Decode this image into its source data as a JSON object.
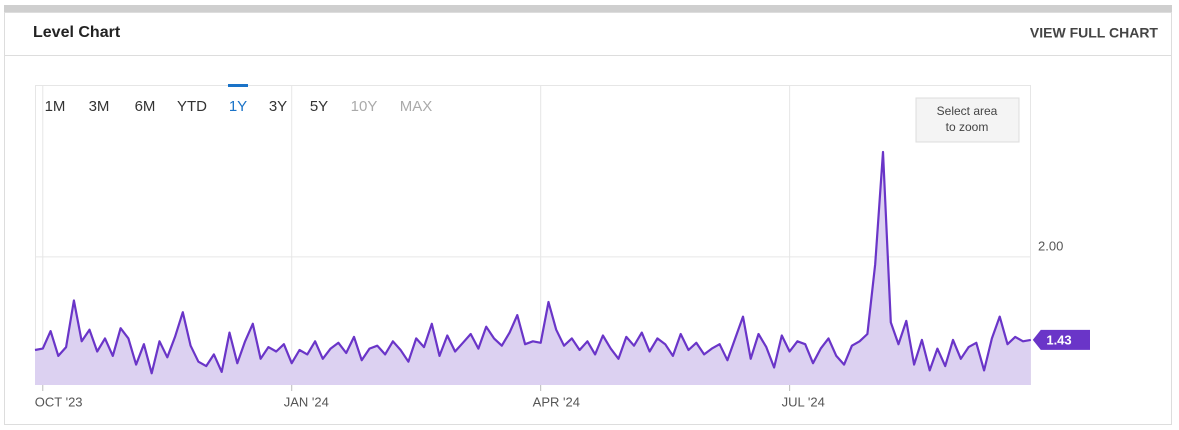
{
  "header": {
    "title": "Level Chart",
    "action": "VIEW FULL CHART"
  },
  "range_selector": {
    "options": [
      {
        "label": "1M",
        "selected": false,
        "enabled": true
      },
      {
        "label": "3M",
        "selected": false,
        "enabled": true
      },
      {
        "label": "6M",
        "selected": false,
        "enabled": true
      },
      {
        "label": "YTD",
        "selected": false,
        "enabled": true
      },
      {
        "label": "1Y",
        "selected": true,
        "enabled": true
      },
      {
        "label": "3Y",
        "selected": false,
        "enabled": true
      },
      {
        "label": "5Y",
        "selected": false,
        "enabled": true
      },
      {
        "label": "10Y",
        "selected": false,
        "enabled": false
      },
      {
        "label": "MAX",
        "selected": false,
        "enabled": false
      }
    ]
  },
  "zoom_hint": "Select area to zoom",
  "chart_data": {
    "type": "area",
    "grid": true,
    "categories": [
      null,
      "OCT '23",
      null,
      null,
      null,
      null,
      null,
      null,
      null,
      null,
      null,
      null,
      null,
      null,
      null,
      null,
      null,
      null,
      null,
      null,
      null,
      null,
      null,
      null,
      null,
      null,
      null,
      null,
      null,
      null,
      null,
      null,
      null,
      "JAN '24",
      null,
      null,
      null,
      null,
      null,
      null,
      null,
      null,
      null,
      null,
      null,
      null,
      null,
      null,
      null,
      null,
      null,
      null,
      null,
      null,
      null,
      null,
      null,
      null,
      null,
      null,
      null,
      null,
      null,
      null,
      null,
      "APR '24",
      null,
      null,
      null,
      null,
      null,
      null,
      null,
      null,
      null,
      null,
      null,
      null,
      null,
      null,
      null,
      null,
      null,
      null,
      null,
      null,
      null,
      null,
      null,
      null,
      null,
      null,
      null,
      null,
      null,
      null,
      null,
      "JUL '24",
      null,
      null,
      null,
      null,
      null,
      null,
      null,
      null,
      null,
      null,
      null,
      null,
      null,
      null,
      null,
      null,
      null,
      null,
      null,
      null,
      null,
      null,
      null,
      null,
      null,
      null,
      null,
      null,
      null,
      null,
      null
    ],
    "series": [
      {
        "color": "#6a35c8",
        "fill": "#dcd1f1",
        "values": [
          1.36,
          1.37,
          1.49,
          1.32,
          1.38,
          1.7,
          1.42,
          1.5,
          1.35,
          1.44,
          1.32,
          1.51,
          1.44,
          1.26,
          1.4,
          1.2,
          1.42,
          1.31,
          1.45,
          1.62,
          1.39,
          1.28,
          1.25,
          1.33,
          1.21,
          1.48,
          1.27,
          1.42,
          1.54,
          1.3,
          1.38,
          1.35,
          1.4,
          1.27,
          1.36,
          1.33,
          1.42,
          1.3,
          1.37,
          1.41,
          1.34,
          1.45,
          1.29,
          1.37,
          1.39,
          1.33,
          1.42,
          1.36,
          1.28,
          1.44,
          1.38,
          1.54,
          1.32,
          1.46,
          1.35,
          1.41,
          1.47,
          1.37,
          1.52,
          1.44,
          1.39,
          1.48,
          1.6,
          1.4,
          1.42,
          1.41,
          1.69,
          1.5,
          1.39,
          1.44,
          1.36,
          1.42,
          1.33,
          1.46,
          1.37,
          1.3,
          1.45,
          1.39,
          1.48,
          1.35,
          1.44,
          1.4,
          1.32,
          1.47,
          1.36,
          1.41,
          1.33,
          1.37,
          1.4,
          1.29,
          1.44,
          1.59,
          1.3,
          1.47,
          1.38,
          1.24,
          1.46,
          1.35,
          1.42,
          1.4,
          1.27,
          1.37,
          1.44,
          1.32,
          1.26,
          1.39,
          1.42,
          1.47,
          1.95,
          2.72,
          1.55,
          1.4,
          1.56,
          1.26,
          1.43,
          1.22,
          1.37,
          1.25,
          1.43,
          1.3,
          1.38,
          1.41,
          1.22,
          1.44,
          1.59,
          1.4,
          1.45,
          1.42,
          1.43
        ]
      }
    ],
    "ylim": [
      1.12,
      3.18
    ],
    "yticks": [
      {
        "value": 2,
        "label": "2.00"
      }
    ]
  }
}
